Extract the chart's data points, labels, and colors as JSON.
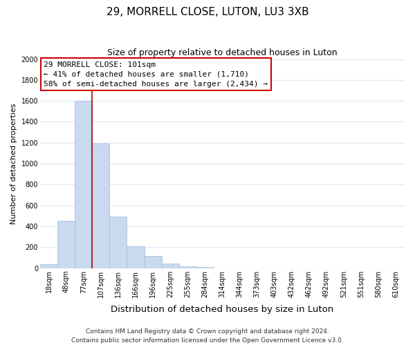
{
  "title": "29, MORRELL CLOSE, LUTON, LU3 3XB",
  "subtitle": "Size of property relative to detached houses in Luton",
  "xlabel": "Distribution of detached houses by size in Luton",
  "ylabel": "Number of detached properties",
  "bar_labels": [
    "18sqm",
    "48sqm",
    "77sqm",
    "107sqm",
    "136sqm",
    "166sqm",
    "196sqm",
    "225sqm",
    "255sqm",
    "284sqm",
    "314sqm",
    "344sqm",
    "373sqm",
    "403sqm",
    "432sqm",
    "462sqm",
    "492sqm",
    "521sqm",
    "551sqm",
    "580sqm",
    "610sqm"
  ],
  "bar_values": [
    35,
    455,
    1600,
    1195,
    490,
    210,
    115,
    42,
    18,
    8,
    0,
    0,
    0,
    0,
    0,
    0,
    0,
    0,
    0,
    0,
    0
  ],
  "bar_color": "#c9d9f0",
  "bar_edge_color": "#a0b8d8",
  "vline_color": "#aa0000",
  "annotation_line1": "29 MORRELL CLOSE: 101sqm",
  "annotation_line2": "← 41% of detached houses are smaller (1,710)",
  "annotation_line3": "58% of semi-detached houses are larger (2,434) →",
  "annotation_box_color": "#ffffff",
  "annotation_box_edge": "#cc0000",
  "ylim": [
    0,
    2000
  ],
  "yticks": [
    0,
    200,
    400,
    600,
    800,
    1000,
    1200,
    1400,
    1600,
    1800,
    2000
  ],
  "footer_line1": "Contains HM Land Registry data © Crown copyright and database right 2024.",
  "footer_line2": "Contains public sector information licensed under the Open Government Licence v3.0.",
  "bg_color": "#ffffff",
  "grid_color": "#dce8f5",
  "title_fontsize": 11,
  "subtitle_fontsize": 9,
  "xlabel_fontsize": 9.5,
  "ylabel_fontsize": 8,
  "tick_fontsize": 7,
  "annotation_fontsize": 8,
  "footer_fontsize": 6.5
}
